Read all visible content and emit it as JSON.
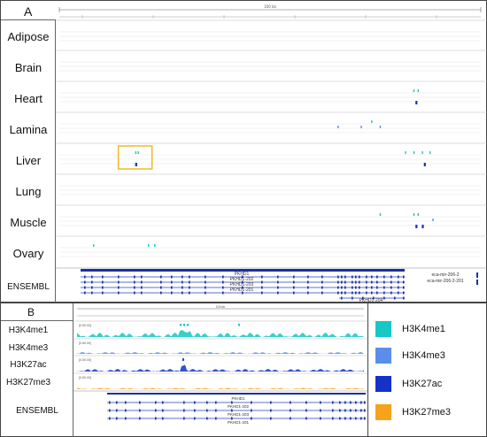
{
  "panel_a": {
    "letter": "A",
    "tracks": [
      {
        "label": "Adipose",
        "marks": []
      },
      {
        "label": "Brain",
        "marks": []
      },
      {
        "label": "Heart",
        "marks": [
          {
            "pos": 0.84,
            "mark": "H3K4me1"
          },
          {
            "pos": 0.85,
            "mark": "H3K4me1"
          },
          {
            "pos": 0.845,
            "mark": "H3K27ac"
          }
        ]
      },
      {
        "label": "Lamina",
        "marks": [
          {
            "pos": 0.74,
            "mark": "H3K4me1"
          },
          {
            "pos": 0.66,
            "mark": "H3K4me3"
          },
          {
            "pos": 0.715,
            "mark": "H3K4me3"
          },
          {
            "pos": 0.76,
            "mark": "H3K4me3"
          }
        ]
      },
      {
        "label": "Liver",
        "marks": [
          {
            "pos": 0.18,
            "mark": "H3K4me1"
          },
          {
            "pos": 0.186,
            "mark": "H3K4me1"
          },
          {
            "pos": 0.82,
            "mark": "H3K4me1"
          },
          {
            "pos": 0.84,
            "mark": "H3K4me1"
          },
          {
            "pos": 0.86,
            "mark": "H3K4me1"
          },
          {
            "pos": 0.878,
            "mark": "H3K4me1"
          },
          {
            "pos": 0.865,
            "mark": "H3K27ac"
          },
          {
            "pos": 0.18,
            "mark": "H3K27ac"
          }
        ]
      },
      {
        "label": "Lung",
        "marks": []
      },
      {
        "label": "Muscle",
        "marks": [
          {
            "pos": 0.76,
            "mark": "H3K4me1"
          },
          {
            "pos": 0.84,
            "mark": "H3K4me1"
          },
          {
            "pos": 0.85,
            "mark": "H3K4me1"
          },
          {
            "pos": 0.885,
            "mark": "H3K4me3"
          },
          {
            "pos": 0.845,
            "mark": "H3K27ac"
          },
          {
            "pos": 0.86,
            "mark": "H3K27ac"
          }
        ]
      },
      {
        "label": "Ovary",
        "marks": [
          {
            "pos": 0.08,
            "mark": "H3K4me1"
          },
          {
            "pos": 0.21,
            "mark": "H3K4me1"
          },
          {
            "pos": 0.225,
            "mark": "H3K4me1"
          }
        ]
      }
    ],
    "ensembl": {
      "label": "ENSEMBL",
      "transcripts": [
        "PKHD1",
        "PKHD1-202",
        "PKHD1-203",
        "PKHD1-201"
      ],
      "extra_transcript": "PKHD1-204",
      "mirnas": [
        "eca-mir-206-2",
        "eca-mir-206-2-201"
      ]
    },
    "scale_label": "100 kb",
    "highlight": {
      "start": 0.14,
      "end": 0.22,
      "track_index": 4
    }
  },
  "panel_b": {
    "letter": "B",
    "tracks": [
      {
        "label": "H3K4me1",
        "mark": "H3K4me1",
        "scale": "[0-50.00]"
      },
      {
        "label": "H3K4me3",
        "mark": "H3K4me3",
        "scale": "[0-50.00]"
      },
      {
        "label": "H3K27ac",
        "mark": "H3K27ac",
        "scale": "[0-50.00]"
      },
      {
        "label": "H3K27me3",
        "mark": "H3K27me3",
        "scale": "[0-50.00]"
      }
    ],
    "ensembl": {
      "label": "ENSEMBL",
      "transcripts": [
        "PKHD1",
        "PKHD1-202",
        "PKHD1-203",
        "PKHD1-201"
      ]
    },
    "scale_label": "100 kb"
  },
  "legend": [
    {
      "name": "H3K4me1",
      "color": "#16c7c2"
    },
    {
      "name": "H3K4me3",
      "color": "#5b8ee8"
    },
    {
      "name": "H3K27ac",
      "color": "#1232c8"
    },
    {
      "name": "H3K27me3",
      "color": "#f5a21c"
    }
  ]
}
